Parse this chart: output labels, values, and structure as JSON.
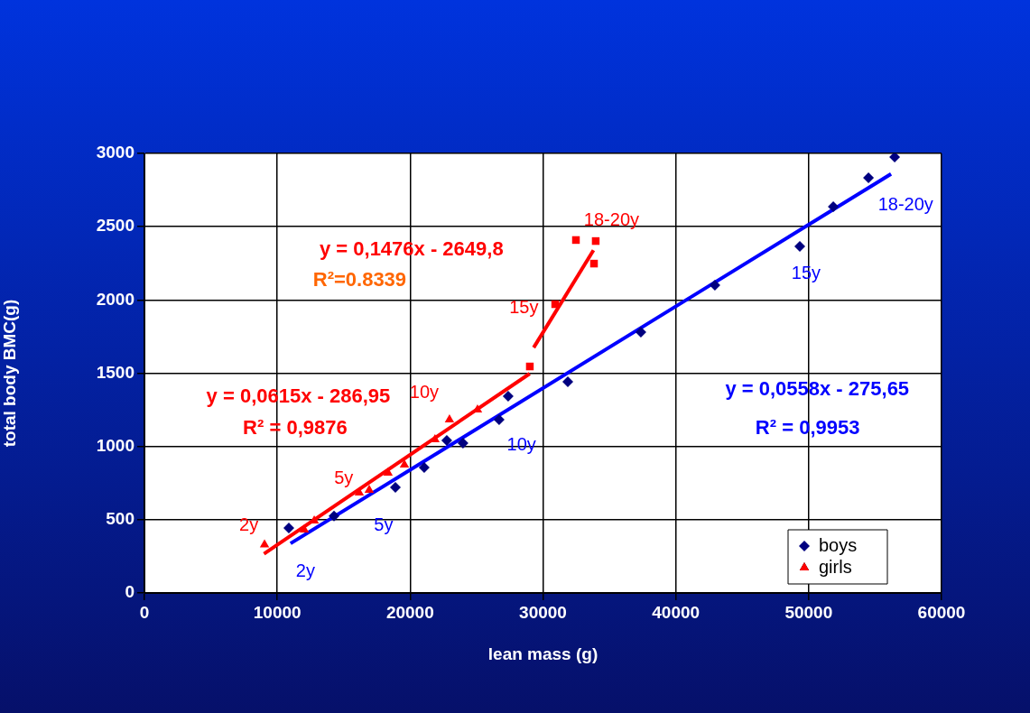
{
  "chart_data": {
    "type": "scatter",
    "xlabel": "lean mass (g)",
    "ylabel": "total body BMC(g)",
    "xlim": [
      0,
      60000
    ],
    "xticks": [
      0,
      10000,
      20000,
      30000,
      40000,
      50000,
      60000
    ],
    "ylim": [
      0,
      3000
    ],
    "yticks": [
      0,
      500,
      1000,
      1500,
      2000,
      2500,
      3000
    ],
    "grid": true,
    "legend": "bottom right",
    "series": [
      {
        "name": "boys",
        "color": "#000080",
        "marker": "diamond",
        "x": [
          10870,
          14270,
          18890,
          21060,
          22760,
          23980,
          26700,
          27380,
          31870,
          37370,
          42940,
          49330,
          51850,
          54500,
          56470
        ],
        "values": [
          444,
          525,
          721,
          856,
          1041,
          1023,
          1183,
          1343,
          1441,
          1780,
          2101,
          2365,
          2637,
          2834,
          2975
        ]
      },
      {
        "name": "girls",
        "color": "#ff0000",
        "marker": "triangle",
        "x": [
          9040,
          12030,
          12780,
          16170,
          16920,
          18340,
          19570,
          21870,
          22960,
          25070
        ],
        "values": [
          330,
          431,
          493,
          684,
          702,
          819,
          875,
          1047,
          1183,
          1251
        ]
      },
      {
        "color": "#ff0000",
        "marker": "square",
        "x": [
          29010,
          30920,
          32480,
          33970,
          33840
        ],
        "values": [
          1546,
          1971,
          2409,
          2402,
          2248
        ]
      },
      {
        "type": "line",
        "color": "#ff0000",
        "marker": "none",
        "x": [
          9000,
          29000
        ],
        "values": [
          267,
          1497
        ]
      },
      {
        "type": "line",
        "color": "#ff0000",
        "marker": "none",
        "x": [
          29300,
          33800
        ],
        "values": [
          1675,
          2339
        ]
      },
      {
        "type": "line",
        "color": "#0000ff",
        "marker": "none",
        "x": [
          11000,
          56200
        ],
        "values": [
          338,
          2860
        ]
      }
    ],
    "annotations": [
      "2y",
      "5y",
      "10y",
      "15y",
      "18-20y",
      "2y",
      "5y",
      "10y",
      "15y",
      "18-20y",
      "y = 0,1476x - 2649,8",
      "R²=0.8339",
      "y = 0,0615x - 286,95",
      "R² = 0,9876",
      "y = 0,0558x - 275,65",
      "R² = 0,9953"
    ]
  }
}
